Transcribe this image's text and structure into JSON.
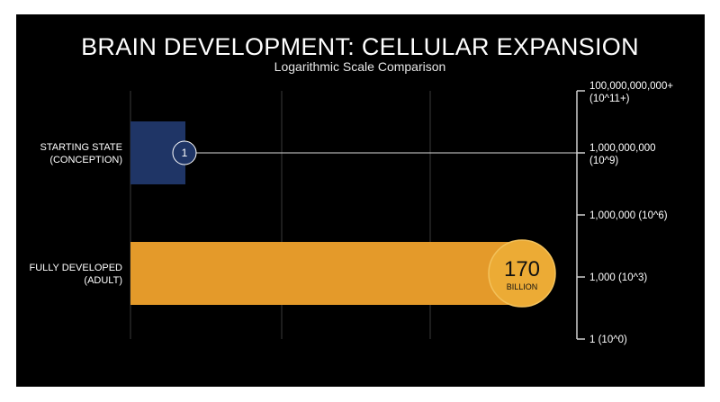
{
  "title": "BRAIN DEVELOPMENT: CELLULAR EXPANSION",
  "subtitle": "Logarithmic Scale Comparison",
  "colors": {
    "background": "#000000",
    "grid": "#3a3a3a",
    "axis": "#cfcfcf",
    "text": "#ffffff",
    "starting_bar": "#1f3566",
    "developed_bar": "#e49a2a",
    "developed_badge": "#ecab35"
  },
  "chart_data": {
    "type": "bar",
    "orientation": "horizontal",
    "title": "BRAIN DEVELOPMENT: CELLULAR EXPANSION",
    "subtitle": "Logarithmic Scale Comparison",
    "scale": "log",
    "grid": true,
    "categories": [
      [
        "STARTING STATE",
        "(CONCEPTION)"
      ],
      [
        "FULLY DEVELOPED",
        "(ADULT)"
      ]
    ],
    "values": [
      1,
      170000000000
    ],
    "data_labels": [
      {
        "value": "1",
        "unit": ""
      },
      {
        "value": "170",
        "unit": "BILLION"
      }
    ],
    "ticks": [
      {
        "label": [
          "100,000,000,000+",
          "(10^11+)"
        ]
      },
      {
        "label": [
          "1,000,000,000",
          "(10^9)"
        ]
      },
      {
        "label": [
          "1,000,000 (10^6)"
        ]
      },
      {
        "label": [
          "1,000 (10^3)"
        ]
      },
      {
        "label": [
          "1 (10^0)"
        ]
      }
    ]
  }
}
